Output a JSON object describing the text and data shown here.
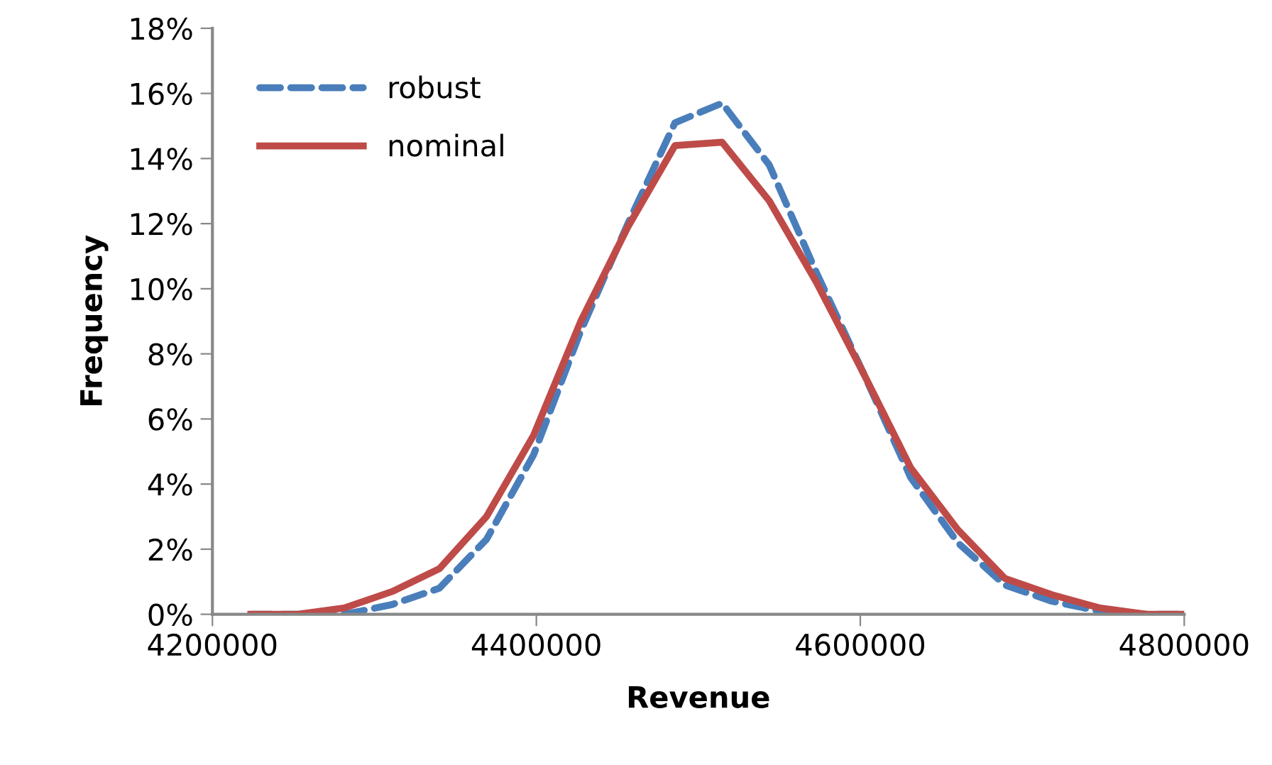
{
  "chart_data": {
    "type": "line",
    "xlabel": "Revenue",
    "ylabel": "Frequency",
    "x": [
      4223700,
      4252800,
      4281900,
      4311000,
      4340100,
      4369200,
      4398300,
      4427400,
      4456500,
      4485600,
      4514700,
      4543800,
      4572900,
      4602000,
      4631100,
      4660200,
      4689300,
      4718400,
      4747500,
      4776600,
      4800000
    ],
    "series": [
      {
        "name": "robust",
        "color": "#4a7ebb",
        "line_style": "dashed",
        "values": [
          0,
          0,
          0,
          0.3,
          0.8,
          2.3,
          4.9,
          8.7,
          12.0,
          15.1,
          15.7,
          13.8,
          10.5,
          7.4,
          4.2,
          2.2,
          0.9,
          0.4,
          0.1,
          0,
          0
        ]
      },
      {
        "name": "nominal",
        "color": "#be4b48",
        "line_style": "solid",
        "values": [
          0,
          0,
          0.2,
          0.7,
          1.4,
          3.0,
          5.5,
          9.0,
          11.9,
          14.4,
          14.5,
          12.7,
          10.2,
          7.4,
          4.5,
          2.6,
          1.1,
          0.6,
          0.2,
          0,
          0
        ]
      }
    ],
    "xlim": [
      4200000,
      4800000
    ],
    "xticks": [
      4200000,
      4400000,
      4600000,
      4800000
    ],
    "ylim": [
      0,
      18
    ],
    "yticks": [
      {
        "value": 0,
        "label": "0%"
      },
      {
        "value": 2,
        "label": "2%"
      },
      {
        "value": 4,
        "label": "4%"
      },
      {
        "value": 6,
        "label": "6%"
      },
      {
        "value": 8,
        "label": "8%"
      },
      {
        "value": 10,
        "label": "10%"
      },
      {
        "value": 12,
        "label": "12%"
      },
      {
        "value": 14,
        "label": "14%"
      },
      {
        "value": 16,
        "label": "16%"
      },
      {
        "value": 18,
        "label": "18%"
      }
    ],
    "grid": false,
    "legend": "top left",
    "marker": "none"
  }
}
